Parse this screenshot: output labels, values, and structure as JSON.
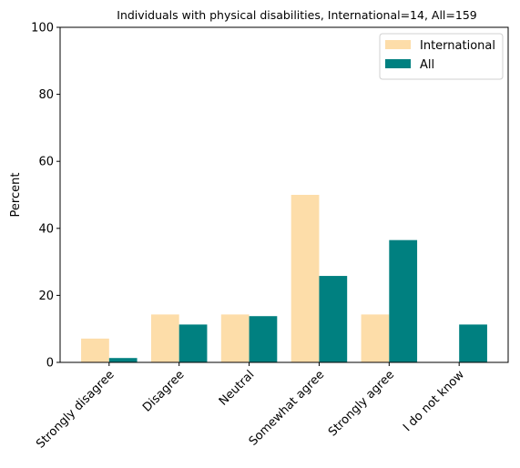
{
  "chart_data": {
    "type": "bar",
    "title": "Individuals with physical disabilities, International=14, All=159",
    "xlabel": "",
    "ylabel": "Percent",
    "ylim": [
      0,
      100
    ],
    "yticks": [
      0,
      20,
      40,
      60,
      80,
      100
    ],
    "categories": [
      "Strongly disagree",
      "Disagree",
      "Neutral",
      "Somewhat agree",
      "Strongly agree",
      "I do not know"
    ],
    "series": [
      {
        "name": "International",
        "color": "#FDDDA9",
        "values": [
          7.1,
          14.3,
          14.3,
          50.0,
          14.3,
          0.0
        ]
      },
      {
        "name": "All",
        "color": "#008080",
        "values": [
          1.3,
          11.3,
          13.8,
          25.8,
          36.5,
          11.3
        ]
      }
    ],
    "legend": "top-right",
    "grid": false
  }
}
